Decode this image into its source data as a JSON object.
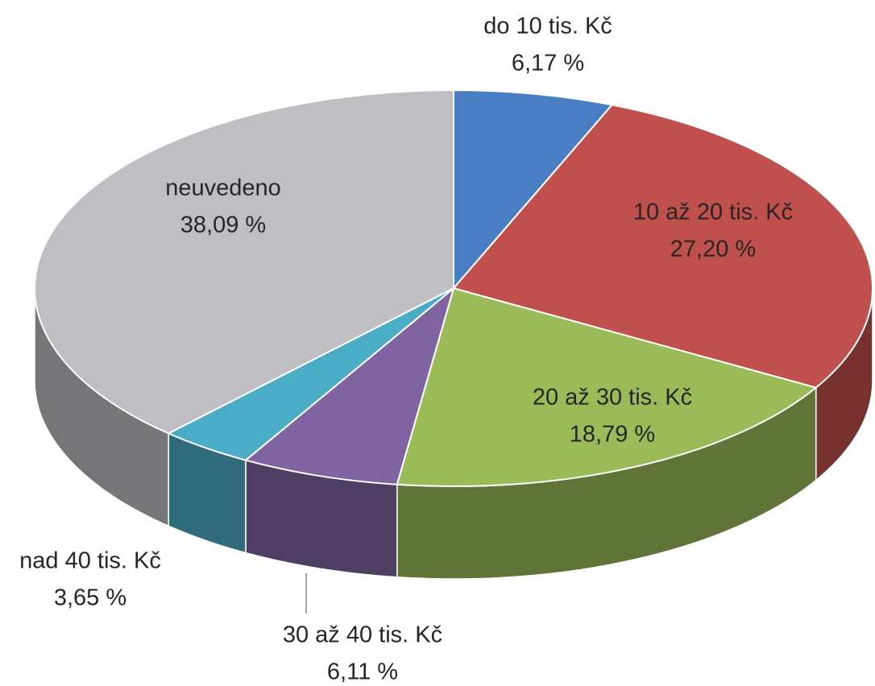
{
  "chart_data": {
    "type": "pie3d",
    "categories": [
      "do 10 tis. Kč",
      "10 až 20 tis. Kč",
      "20 až 30 tis. Kč",
      "30 až 40 tis. Kč",
      "nad 40 tis. Kč",
      "neuvedeno"
    ],
    "values": [
      6.17,
      27.2,
      18.79,
      6.11,
      3.65,
      38.09
    ],
    "value_labels": [
      "6,17 %",
      "27,20 %",
      "18,79 %",
      "6,11 %",
      "3,65 %",
      "38,09 %"
    ],
    "colors": [
      "#4a7ec4",
      "#c0504d",
      "#9bbb59",
      "#8064a2",
      "#4bacc6",
      "#bfbfc3"
    ]
  }
}
